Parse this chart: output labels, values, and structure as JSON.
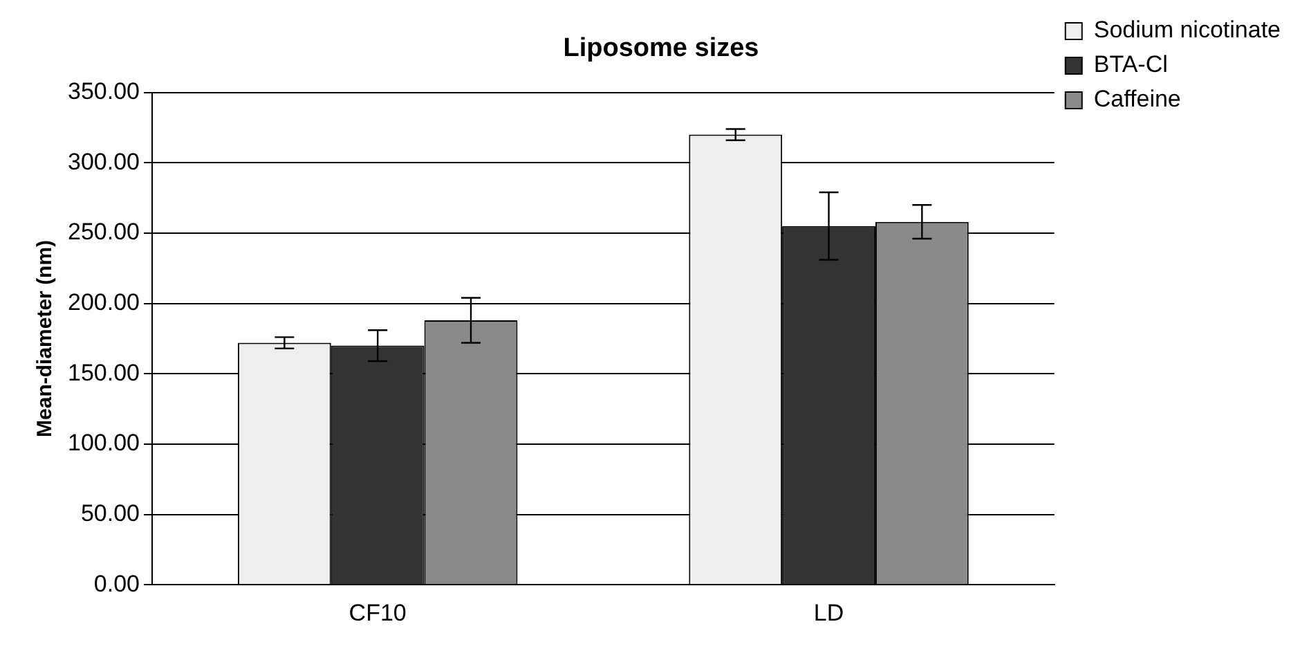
{
  "chart_data": {
    "type": "bar",
    "title": "Liposome sizes",
    "ylabel": "Mean-diameter (nm)",
    "categories": [
      "CF10",
      "LD"
    ],
    "series": [
      {
        "name": "Sodium nicotinate",
        "color": "#eeeeee",
        "values": [
          172,
          320
        ],
        "errors": [
          4,
          4
        ]
      },
      {
        "name": "BTA-Cl",
        "color": "#333333",
        "values": [
          170,
          255
        ],
        "errors": [
          11,
          24
        ]
      },
      {
        "name": "Caffeine",
        "color": "#8a8a8a",
        "values": [
          188,
          258
        ],
        "errors": [
          16,
          12
        ]
      }
    ],
    "ylim": [
      0,
      350
    ],
    "yticks": [
      {
        "value": 0,
        "label": "0.00"
      },
      {
        "value": 50,
        "label": "50.00"
      },
      {
        "value": 100,
        "label": "100.00"
      },
      {
        "value": 150,
        "label": "150.00"
      },
      {
        "value": 200,
        "label": "200.00"
      },
      {
        "value": 250,
        "label": "250.00"
      },
      {
        "value": 300,
        "label": "300.00"
      },
      {
        "value": 350,
        "label": "350.00"
      }
    ],
    "grid": "y",
    "legend": "top right"
  }
}
